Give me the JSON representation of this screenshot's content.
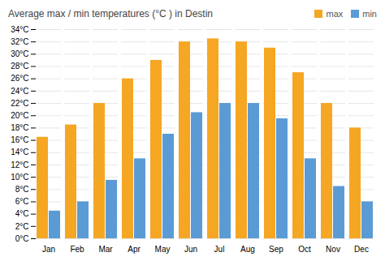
{
  "chart_data": {
    "type": "bar",
    "title": "Average max / min temperatures (°C ) in Destin",
    "categories": [
      "Jan",
      "Feb",
      "Mar",
      "Apr",
      "May",
      "Jun",
      "Jul",
      "Aug",
      "Sep",
      "Oct",
      "Nov",
      "Dec"
    ],
    "series": [
      {
        "name": "max",
        "color": "#f5a623",
        "values": [
          16.5,
          18.5,
          22,
          26,
          29,
          32,
          32.5,
          32,
          31,
          27,
          22,
          18
        ]
      },
      {
        "name": "min",
        "color": "#5b9bd5",
        "values": [
          4.5,
          6,
          9.5,
          13,
          17,
          20.5,
          22,
          22,
          19.5,
          13,
          8.5,
          6
        ]
      }
    ],
    "ylim": [
      0,
      34
    ],
    "yticks": [
      {
        "value": 0,
        "label": "0°C"
      },
      {
        "value": 2,
        "label": "2°C"
      },
      {
        "value": 4,
        "label": "4°C"
      },
      {
        "value": 6,
        "label": "6°C"
      },
      {
        "value": 8,
        "label": "8°C"
      },
      {
        "value": 10,
        "label": "10°C"
      },
      {
        "value": 12,
        "label": "12°C"
      },
      {
        "value": 14,
        "label": "14°C"
      },
      {
        "value": 16,
        "label": "16°C"
      },
      {
        "value": 18,
        "label": "18°C"
      },
      {
        "value": 20,
        "label": "20°C"
      },
      {
        "value": 22,
        "label": "22°C"
      },
      {
        "value": 24,
        "label": "24°C"
      },
      {
        "value": 26,
        "label": "26°C"
      },
      {
        "value": 28,
        "label": "28°C"
      },
      {
        "value": 30,
        "label": "30°C"
      },
      {
        "value": 32,
        "label": "32°C"
      },
      {
        "value": 34,
        "label": "34°C"
      }
    ],
    "grid": true,
    "legend": "upper right"
  }
}
